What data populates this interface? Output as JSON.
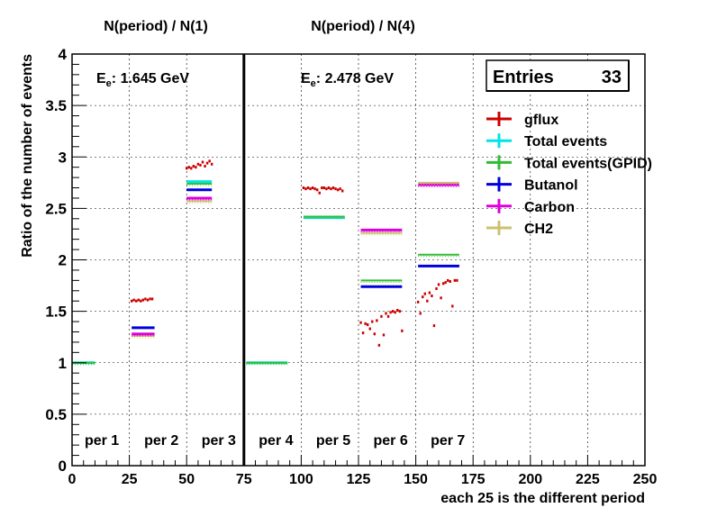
{
  "chart_data": {
    "type": "scatter",
    "title_left": "N(period) / N(1)",
    "title_right": "N(period) / N(4)",
    "energy_left": {
      "prefix": "E",
      "sub": "e",
      "value": ": 1.645 GeV"
    },
    "energy_right": {
      "prefix": "E",
      "sub": "e",
      "value": ": 2.478 GeV"
    },
    "xlabel": "each 25 is the different period",
    "ylabel": "Ratio of the number of events",
    "xlim": [
      0,
      250
    ],
    "ylim": [
      0,
      4
    ],
    "x_ticks": [
      "0",
      "25",
      "50",
      "75",
      "100",
      "125",
      "150",
      "175",
      "200",
      "225",
      "250"
    ],
    "y_ticks": [
      "0",
      "0.5",
      "1",
      "1.5",
      "2",
      "2.5",
      "3",
      "3.5",
      "4"
    ],
    "grid": true,
    "separator_x": 75,
    "stats_box": {
      "label": "Entries",
      "value": "33"
    },
    "period_labels": [
      {
        "text": "per 1",
        "x": 13
      },
      {
        "text": "per 2",
        "x": 39
      },
      {
        "text": "per 3",
        "x": 64
      },
      {
        "text": "per 4",
        "x": 89
      },
      {
        "text": "per 5",
        "x": 114
      },
      {
        "text": "per 6",
        "x": 139
      },
      {
        "text": "per 7",
        "x": 164
      }
    ],
    "legend": [
      {
        "name": "gflux",
        "color": "#cc0000"
      },
      {
        "name": "Total events",
        "color": "#00e5e5"
      },
      {
        "name": "Total events(GPID)",
        "color": "#33bb33"
      },
      {
        "name": "Butanol",
        "color": "#0000dd"
      },
      {
        "name": "Carbon",
        "color": "#dd00dd"
      },
      {
        "name": "CH2",
        "color": "#ccc070"
      }
    ],
    "segments": [
      {
        "series": "Total events",
        "x0": 0,
        "x1": 10,
        "y": 1.0
      },
      {
        "series": "Total events(GPID)",
        "x0": 0,
        "x1": 10,
        "y": 1.0
      },
      {
        "series": "CH2",
        "x0": 26,
        "x1": 36,
        "y": 1.26
      },
      {
        "series": "Carbon",
        "x0": 26,
        "x1": 36,
        "y": 1.28
      },
      {
        "series": "Butanol",
        "x0": 26,
        "x1": 36,
        "y": 1.34
      },
      {
        "series": "CH2",
        "x0": 50,
        "x1": 61,
        "y": 2.57
      },
      {
        "series": "Carbon",
        "x0": 50,
        "x1": 61,
        "y": 2.6
      },
      {
        "series": "Butanol",
        "x0": 50,
        "x1": 61,
        "y": 2.68
      },
      {
        "series": "Total events(GPID)",
        "x0": 50,
        "x1": 61,
        "y": 2.74
      },
      {
        "series": "Total events",
        "x0": 50,
        "x1": 61,
        "y": 2.76
      },
      {
        "series": "Total events",
        "x0": 76,
        "x1": 94,
        "y": 1.0
      },
      {
        "series": "Total events(GPID)",
        "x0": 76,
        "x1": 94,
        "y": 1.0
      },
      {
        "series": "Total events",
        "x0": 101,
        "x1": 119,
        "y": 2.41
      },
      {
        "series": "Total events(GPID)",
        "x0": 101,
        "x1": 119,
        "y": 2.42
      },
      {
        "series": "Butanol",
        "x0": 126,
        "x1": 144,
        "y": 1.74
      },
      {
        "series": "Total events(GPID)",
        "x0": 126,
        "x1": 144,
        "y": 1.8
      },
      {
        "series": "CH2",
        "x0": 126,
        "x1": 144,
        "y": 2.26
      },
      {
        "series": "Carbon",
        "x0": 126,
        "x1": 144,
        "y": 2.29
      },
      {
        "series": "Butanol",
        "x0": 151,
        "x1": 169,
        "y": 1.94
      },
      {
        "series": "Total events(GPID)",
        "x0": 151,
        "x1": 169,
        "y": 2.05
      },
      {
        "series": "Carbon",
        "x0": 151,
        "x1": 169,
        "y": 2.73
      },
      {
        "series": "CH2",
        "x0": 151,
        "x1": 169,
        "y": 2.75
      }
    ],
    "gflux_points": [
      {
        "x": 26,
        "y": 1.6
      },
      {
        "x": 27,
        "y": 1.61
      },
      {
        "x": 28,
        "y": 1.6
      },
      {
        "x": 29,
        "y": 1.61
      },
      {
        "x": 30,
        "y": 1.6
      },
      {
        "x": 31,
        "y": 1.61
      },
      {
        "x": 32,
        "y": 1.62
      },
      {
        "x": 33,
        "y": 1.61
      },
      {
        "x": 34,
        "y": 1.62
      },
      {
        "x": 35,
        "y": 1.62
      },
      {
        "x": 50,
        "y": 2.89
      },
      {
        "x": 51,
        "y": 2.9
      },
      {
        "x": 52,
        "y": 2.89
      },
      {
        "x": 53,
        "y": 2.91
      },
      {
        "x": 54,
        "y": 2.9
      },
      {
        "x": 55,
        "y": 2.93
      },
      {
        "x": 56,
        "y": 2.92
      },
      {
        "x": 57,
        "y": 2.95
      },
      {
        "x": 58,
        "y": 2.91
      },
      {
        "x": 59,
        "y": 2.94
      },
      {
        "x": 60,
        "y": 2.96
      },
      {
        "x": 61,
        "y": 2.93
      },
      {
        "x": 101,
        "y": 2.7
      },
      {
        "x": 102,
        "y": 2.69
      },
      {
        "x": 103,
        "y": 2.7
      },
      {
        "x": 104,
        "y": 2.69
      },
      {
        "x": 105,
        "y": 2.7
      },
      {
        "x": 106,
        "y": 2.69
      },
      {
        "x": 107,
        "y": 2.68
      },
      {
        "x": 108,
        "y": 2.65
      },
      {
        "x": 109,
        "y": 2.7
      },
      {
        "x": 110,
        "y": 2.7
      },
      {
        "x": 111,
        "y": 2.69
      },
      {
        "x": 112,
        "y": 2.7
      },
      {
        "x": 113,
        "y": 2.69
      },
      {
        "x": 114,
        "y": 2.7
      },
      {
        "x": 115,
        "y": 2.69
      },
      {
        "x": 116,
        "y": 2.68
      },
      {
        "x": 117,
        "y": 2.69
      },
      {
        "x": 118,
        "y": 2.67
      },
      {
        "x": 126,
        "y": 1.39
      },
      {
        "x": 127,
        "y": 1.29
      },
      {
        "x": 128,
        "y": 1.38
      },
      {
        "x": 129,
        "y": 1.37
      },
      {
        "x": 130,
        "y": 1.33
      },
      {
        "x": 131,
        "y": 1.4
      },
      {
        "x": 132,
        "y": 1.28
      },
      {
        "x": 133,
        "y": 1.41
      },
      {
        "x": 134,
        "y": 1.17
      },
      {
        "x": 135,
        "y": 1.45
      },
      {
        "x": 136,
        "y": 1.27
      },
      {
        "x": 137,
        "y": 1.48
      },
      {
        "x": 138,
        "y": 1.45
      },
      {
        "x": 139,
        "y": 1.49
      },
      {
        "x": 140,
        "y": 1.5
      },
      {
        "x": 141,
        "y": 1.49
      },
      {
        "x": 142,
        "y": 1.51
      },
      {
        "x": 143,
        "y": 1.5
      },
      {
        "x": 144,
        "y": 1.31
      },
      {
        "x": 151,
        "y": 1.59
      },
      {
        "x": 152,
        "y": 1.48
      },
      {
        "x": 153,
        "y": 1.64
      },
      {
        "x": 154,
        "y": 1.67
      },
      {
        "x": 155,
        "y": 1.6
      },
      {
        "x": 156,
        "y": 1.68
      },
      {
        "x": 157,
        "y": 1.65
      },
      {
        "x": 158,
        "y": 1.36
      },
      {
        "x": 159,
        "y": 1.72
      },
      {
        "x": 160,
        "y": 1.76
      },
      {
        "x": 161,
        "y": 1.63
      },
      {
        "x": 162,
        "y": 1.77
      },
      {
        "x": 163,
        "y": 1.78
      },
      {
        "x": 164,
        "y": 1.8
      },
      {
        "x": 165,
        "y": 1.79
      },
      {
        "x": 166,
        "y": 1.55
      },
      {
        "x": 167,
        "y": 1.8
      },
      {
        "x": 168,
        "y": 1.8
      }
    ]
  }
}
